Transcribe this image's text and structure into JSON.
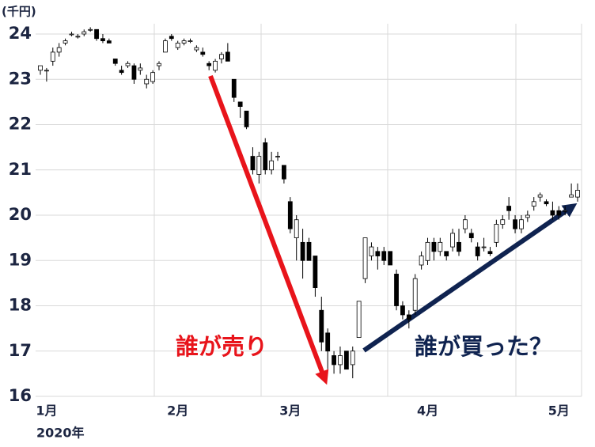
{
  "chart_data": {
    "type": "candlestick",
    "unit_label": "(千円)",
    "year_label": "2020年",
    "categories": [
      null,
      "1月",
      null,
      null,
      null,
      null,
      null,
      null,
      null,
      null,
      null,
      null,
      null,
      null,
      null,
      null,
      null,
      null,
      null,
      null,
      null,
      null,
      "2月",
      null,
      null,
      null,
      null,
      null,
      null,
      null,
      null,
      null,
      null,
      null,
      null,
      null,
      null,
      null,
      null,
      null,
      "3月",
      null,
      null,
      null,
      null,
      null,
      null,
      null,
      null,
      null,
      null,
      null,
      null,
      null,
      null,
      null,
      null,
      null,
      null,
      null,
      null,
      null,
      "4月",
      null,
      null,
      null,
      null,
      null,
      null,
      null,
      null,
      null,
      null,
      null,
      null,
      null,
      null,
      null,
      null,
      null,
      null,
      null,
      null,
      "5月",
      null,
      null,
      null
    ],
    "open": [
      23.2,
      23.2,
      23.4,
      23.6,
      23.8,
      24.0,
      23.95,
      24.0,
      24.1,
      24.1,
      23.9,
      23.85,
      23.45,
      23.2,
      23.3,
      23.3,
      23.2,
      22.9,
      22.95,
      23.3,
      23.6,
      23.95,
      23.7,
      23.8,
      23.85,
      23.65,
      23.6,
      23.35,
      23.2,
      23.45,
      23.6,
      23.0,
      22.5,
      22.3,
      21.3,
      20.9,
      21.6,
      21.0,
      21.3,
      21.1,
      20.3,
      19.5,
      19.4,
      19.4,
      19.1,
      17.9,
      17.4,
      16.9,
      16.7,
      17.0,
      16.7,
      17.3,
      18.6,
      19.1,
      19.2,
      19.2,
      19.2,
      18.7,
      18.0,
      17.8,
      17.9,
      18.9,
      19.0,
      19.4,
      19.2,
      19.2,
      19.3,
      19.4,
      19.7,
      19.6,
      19.3,
      19.3,
      19.2,
      19.4,
      19.8,
      20.2,
      19.9,
      19.7,
      19.95,
      20.2,
      20.4,
      20.3,
      20.1,
      20.1,
      20.1,
      20.4,
      20.4
    ],
    "high": [
      23.3,
      23.25,
      23.7,
      23.8,
      23.9,
      24.05,
      24.0,
      24.1,
      24.15,
      24.1,
      24.0,
      23.9,
      23.45,
      23.3,
      23.4,
      23.35,
      23.35,
      23.1,
      23.2,
      23.4,
      23.9,
      24.0,
      23.85,
      23.9,
      23.9,
      23.75,
      23.7,
      23.4,
      23.45,
      23.6,
      23.8,
      23.0,
      22.5,
      22.3,
      21.5,
      21.4,
      21.7,
      21.4,
      21.4,
      21.1,
      20.4,
      20.0,
      19.7,
      19.5,
      19.1,
      18.2,
      17.5,
      17.0,
      17.1,
      17.0,
      17.1,
      18.1,
      19.5,
      19.4,
      19.3,
      19.3,
      19.2,
      18.8,
      18.1,
      17.9,
      18.7,
      19.2,
      19.5,
      19.5,
      19.5,
      19.2,
      19.7,
      19.7,
      20.0,
      19.7,
      19.4,
      19.5,
      19.3,
      19.9,
      20.0,
      20.4,
      20.0,
      20.0,
      20.1,
      20.4,
      20.5,
      20.35,
      20.3,
      20.2,
      20.2,
      20.7,
      20.7
    ],
    "low": [
      23.1,
      22.95,
      23.3,
      23.5,
      23.75,
      23.95,
      23.9,
      23.95,
      24.05,
      23.85,
      23.8,
      23.8,
      23.3,
      23.1,
      23.25,
      22.9,
      23.1,
      22.8,
      22.9,
      23.2,
      23.6,
      23.85,
      23.65,
      23.75,
      23.8,
      23.6,
      23.5,
      23.2,
      23.15,
      23.35,
      23.4,
      22.5,
      22.15,
      21.9,
      20.9,
      20.7,
      20.9,
      20.9,
      21.2,
      20.7,
      19.6,
      19.0,
      18.6,
      19.0,
      18.2,
      17.0,
      16.6,
      16.5,
      16.5,
      16.6,
      16.4,
      17.3,
      18.5,
      19.0,
      18.8,
      18.9,
      18.9,
      17.9,
      17.7,
      17.5,
      17.8,
      18.8,
      18.9,
      19.0,
      19.1,
      19.0,
      19.2,
      19.1,
      19.6,
      19.4,
      19.0,
      19.2,
      19.1,
      19.3,
      19.7,
      19.9,
      19.6,
      19.6,
      19.85,
      20.1,
      20.3,
      20.2,
      19.9,
      19.9,
      20.0,
      20.4,
      20.3
    ],
    "close": [
      23.3,
      23.2,
      23.6,
      23.7,
      23.85,
      24.0,
      23.95,
      24.05,
      24.1,
      23.9,
      23.85,
      23.8,
      23.35,
      23.15,
      23.35,
      23.0,
      23.25,
      23.0,
      23.15,
      23.35,
      23.85,
      23.9,
      23.8,
      23.85,
      23.85,
      23.7,
      23.55,
      23.3,
      23.4,
      23.55,
      23.4,
      22.6,
      22.4,
      21.95,
      21.0,
      21.3,
      21.0,
      21.2,
      21.3,
      20.8,
      19.7,
      19.9,
      19.0,
      19.0,
      18.4,
      17.2,
      17.0,
      16.7,
      16.9,
      16.6,
      17.0,
      18.1,
      19.5,
      19.3,
      19.1,
      19.0,
      18.9,
      18.0,
      17.8,
      17.7,
      18.6,
      19.1,
      19.4,
      19.2,
      19.4,
      19.1,
      19.6,
      19.2,
      19.9,
      19.5,
      19.1,
      19.3,
      19.15,
      19.8,
      19.9,
      20.1,
      19.7,
      19.9,
      20.0,
      20.3,
      20.45,
      20.25,
      20.0,
      20.0,
      20.1,
      20.45,
      20.55
    ],
    "up_color": "#ffffff",
    "down_color": "#000000",
    "outline_color": "#000000",
    "ylim": [
      16,
      24
    ],
    "yticks": [
      16,
      17,
      18,
      19,
      20,
      21,
      22,
      23,
      24
    ],
    "grid": true,
    "annotations": [
      {
        "text": "誰が売り",
        "color": "#e8141b"
      },
      {
        "text": "誰が買った？",
        "color": "#0f2350"
      }
    ]
  }
}
